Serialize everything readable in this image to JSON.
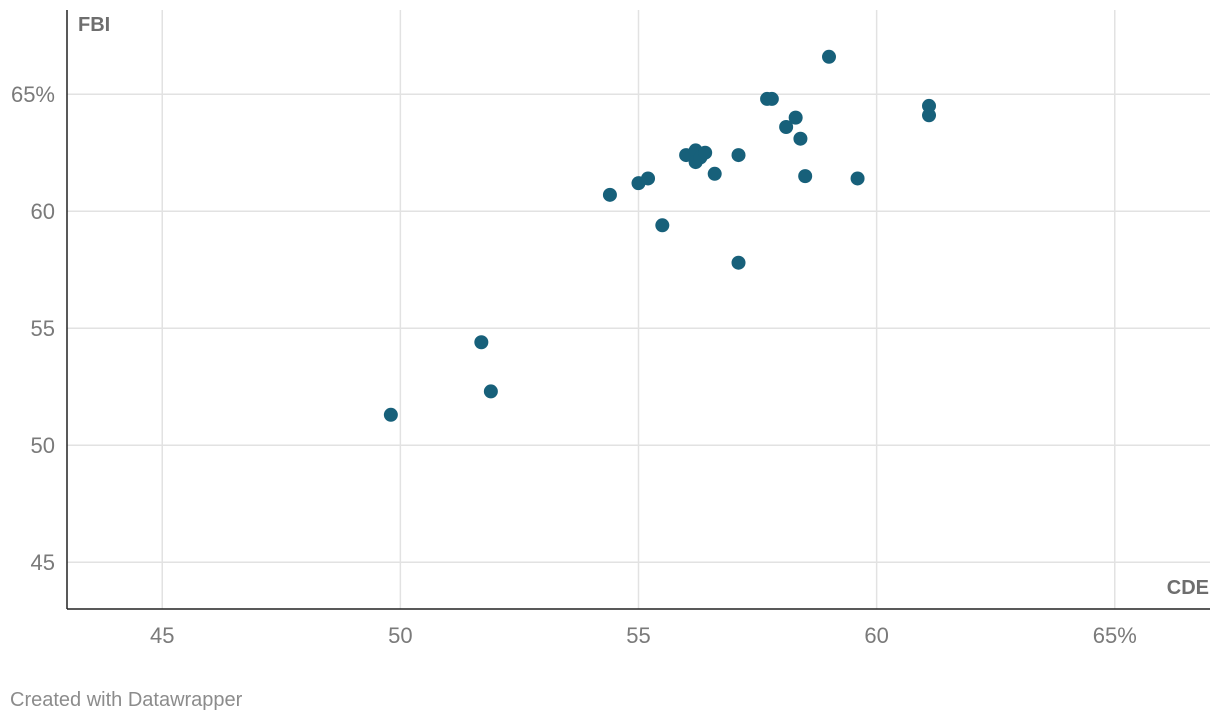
{
  "chart_data": {
    "type": "scatter",
    "xlabel": "CDE",
    "ylabel": "FBI",
    "xlim": [
      43,
      67
    ],
    "ylim": [
      43,
      68.6
    ],
    "x_ticks": [
      {
        "value": 45,
        "label": "45"
      },
      {
        "value": 50,
        "label": "50"
      },
      {
        "value": 55,
        "label": "55"
      },
      {
        "value": 60,
        "label": "60"
      },
      {
        "value": 65,
        "label": "65%"
      }
    ],
    "y_ticks": [
      {
        "value": 45,
        "label": "45"
      },
      {
        "value": 50,
        "label": "50"
      },
      {
        "value": 55,
        "label": "55"
      },
      {
        "value": 60,
        "label": "60"
      },
      {
        "value": 65,
        "label": "65%"
      }
    ],
    "grid": true,
    "point_color": "#17607a",
    "points": [
      {
        "x": 49.8,
        "y": 51.3
      },
      {
        "x": 51.7,
        "y": 54.4
      },
      {
        "x": 51.9,
        "y": 52.3
      },
      {
        "x": 54.4,
        "y": 60.7
      },
      {
        "x": 55.0,
        "y": 61.2
      },
      {
        "x": 55.2,
        "y": 61.4
      },
      {
        "x": 55.5,
        "y": 59.4
      },
      {
        "x": 56.0,
        "y": 62.4
      },
      {
        "x": 56.2,
        "y": 62.6
      },
      {
        "x": 56.2,
        "y": 62.1
      },
      {
        "x": 56.3,
        "y": 62.3
      },
      {
        "x": 56.4,
        "y": 62.5
      },
      {
        "x": 56.6,
        "y": 61.6
      },
      {
        "x": 57.1,
        "y": 62.4
      },
      {
        "x": 57.1,
        "y": 57.8
      },
      {
        "x": 57.7,
        "y": 64.8
      },
      {
        "x": 57.8,
        "y": 64.8
      },
      {
        "x": 58.1,
        "y": 63.6
      },
      {
        "x": 58.3,
        "y": 64.0
      },
      {
        "x": 58.4,
        "y": 63.1
      },
      {
        "x": 58.5,
        "y": 61.5
      },
      {
        "x": 59.0,
        "y": 66.6
      },
      {
        "x": 59.6,
        "y": 61.4
      },
      {
        "x": 61.1,
        "y": 64.5
      },
      {
        "x": 61.1,
        "y": 64.1
      }
    ]
  },
  "footer": {
    "credit": "Created with Datawrapper"
  }
}
